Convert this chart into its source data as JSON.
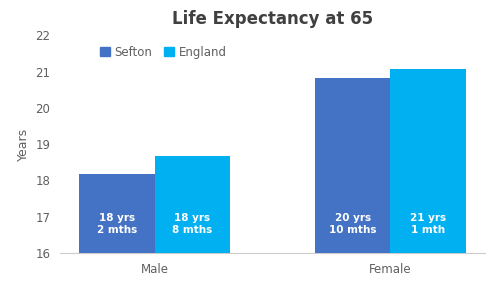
{
  "title": "Life Expectancy at 65",
  "ylabel": "Years",
  "categories": [
    "Male",
    "Female"
  ],
  "series": {
    "Sefton": {
      "values": [
        18.1667,
        20.8333
      ],
      "color": "#4472C4",
      "labels": [
        "18 yrs\n2 mths",
        "20 yrs\n10 mths"
      ]
    },
    "England": {
      "values": [
        18.6667,
        21.0833
      ],
      "color": "#00B0F0",
      "labels": [
        "18 yrs\n8 mths",
        "21 yrs\n1 mth"
      ]
    }
  },
  "ylim": [
    16,
    22
  ],
  "yticks": [
    16,
    17,
    18,
    19,
    20,
    21,
    22
  ],
  "bar_width": 0.32,
  "label_fontsize": 7.5,
  "title_fontsize": 12,
  "title_color": "#404040",
  "axis_label_fontsize": 9,
  "tick_fontsize": 8.5,
  "legend_fontsize": 8.5,
  "tick_color": "#606060",
  "background_color": "#ffffff"
}
